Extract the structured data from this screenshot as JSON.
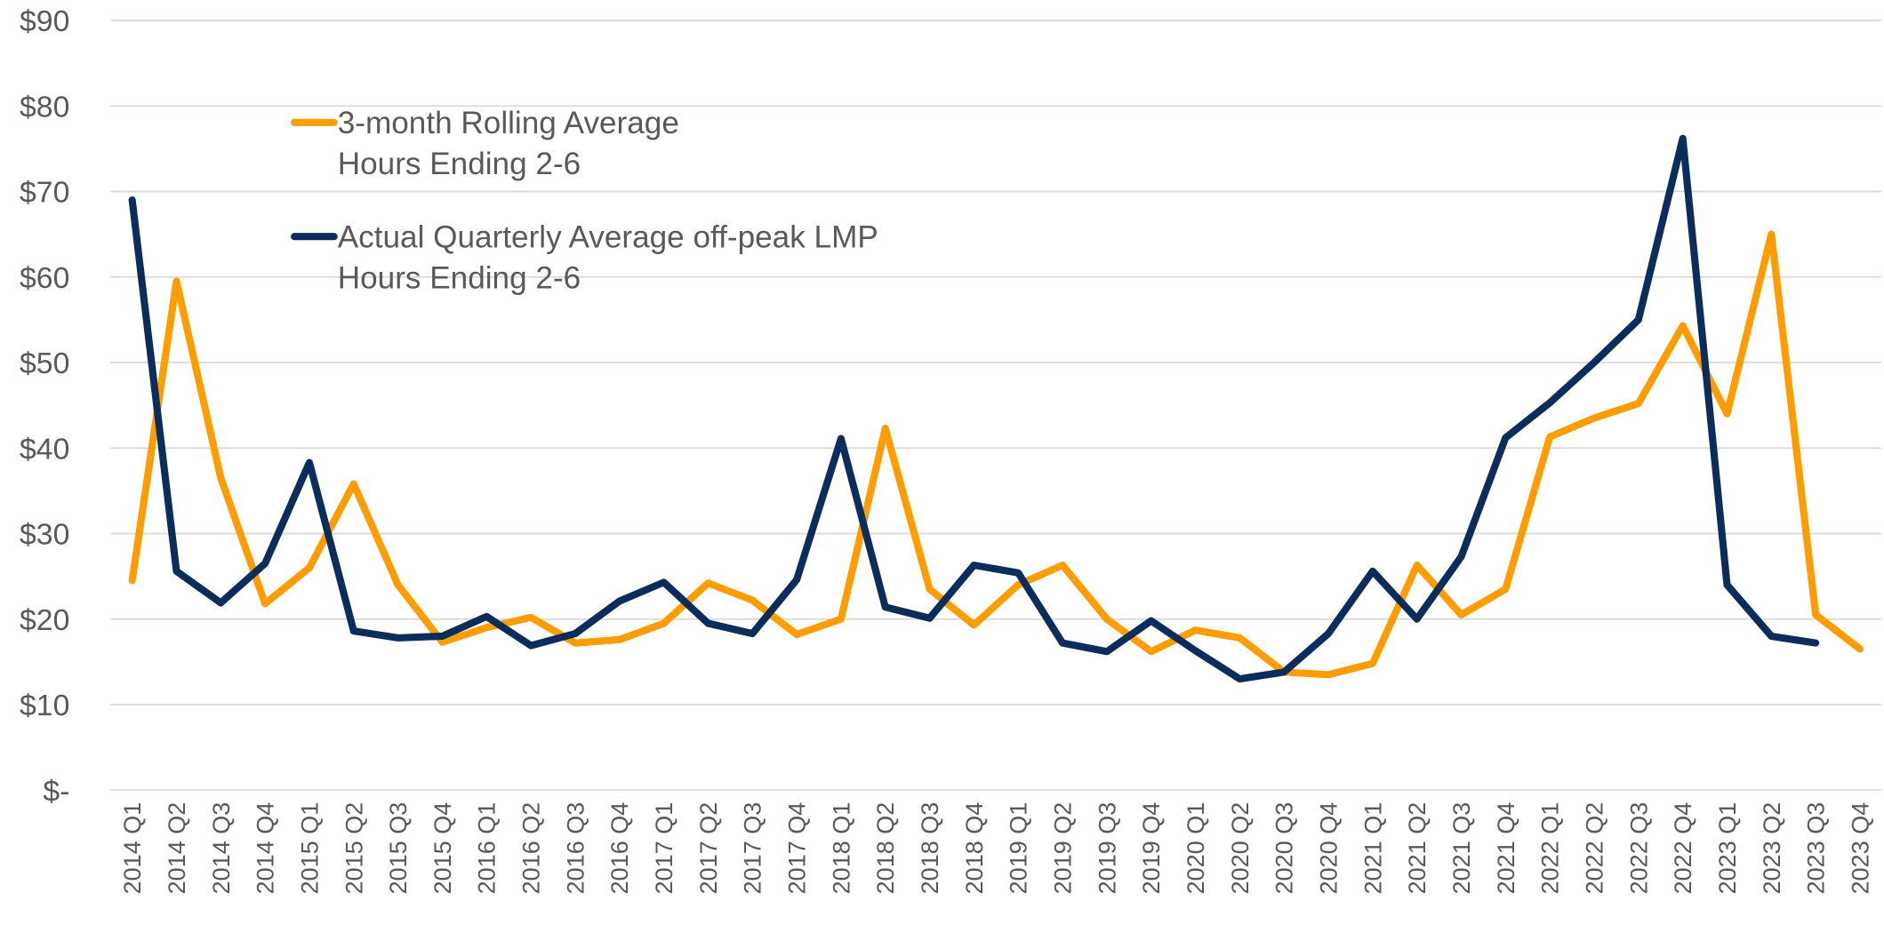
{
  "chart_data": {
    "type": "line",
    "categories": [
      "2014 Q1",
      "2014 Q2",
      "2014 Q3",
      "2014 Q4",
      "2015 Q1",
      "2015 Q2",
      "2015 Q3",
      "2015 Q4",
      "2016 Q1",
      "2016 Q2",
      "2016 Q3",
      "2016 Q4",
      "2017 Q1",
      "2017 Q2",
      "2017 Q3",
      "2017 Q4",
      "2018 Q1",
      "2018 Q2",
      "2018 Q3",
      "2018 Q4",
      "2019 Q1",
      "2019 Q2",
      "2019 Q3",
      "2019 Q4",
      "2020 Q1",
      "2020 Q2",
      "2020 Q3",
      "2020 Q4",
      "2021 Q1",
      "2021 Q2",
      "2021 Q3",
      "2021 Q4",
      "2022 Q1",
      "2022 Q2",
      "2022 Q3",
      "2022 Q4",
      "2023 Q1",
      "2023 Q2",
      "2023 Q3",
      "2023 Q4"
    ],
    "series": [
      {
        "name": "3-month Rolling Average\nHours Ending 2-6",
        "color": "#ff9c00",
        "values": [
          24.5,
          59.5,
          36.5,
          21.8,
          26,
          35.8,
          24,
          17.3,
          19,
          20.2,
          17.2,
          17.6,
          19.5,
          24.2,
          22.2,
          18.2,
          20,
          42.3,
          23.5,
          19.3,
          24,
          26.3,
          20,
          16.2,
          18.7,
          17.8,
          13.8,
          13.5,
          14.8,
          26.3,
          20.5,
          23.5,
          41.3,
          43.5,
          45.2,
          54.3,
          44,
          65,
          20.5,
          16.5
        ]
      },
      {
        "name": "Actual Quarterly Average off-peak LMP\nHours Ending 2-6",
        "color": "#0b2d5b",
        "values": [
          69,
          25.6,
          21.9,
          26.5,
          38.3,
          18.6,
          17.8,
          18,
          20.3,
          16.9,
          18.3,
          22.1,
          24.3,
          19.5,
          18.3,
          24.6,
          41.1,
          21.4,
          20.1,
          26.3,
          25.4,
          17.2,
          16.2,
          19.8,
          16.3,
          13,
          13.8,
          18.3,
          25.6,
          20,
          27.3,
          41.2,
          45.3,
          50,
          55,
          76.2,
          24,
          18,
          17.2,
          null
        ]
      }
    ],
    "ylim": [
      0,
      90
    ],
    "yticks": [
      {
        "value": 0,
        "label": "$-"
      },
      {
        "value": 10,
        "label": "$10"
      },
      {
        "value": 20,
        "label": "$20"
      },
      {
        "value": 30,
        "label": "$30"
      },
      {
        "value": 40,
        "label": "$40"
      },
      {
        "value": 50,
        "label": "$50"
      },
      {
        "value": 60,
        "label": "$60"
      },
      {
        "value": 70,
        "label": "$70"
      },
      {
        "value": 80,
        "label": "$80"
      },
      {
        "value": 90,
        "label": "$90"
      }
    ],
    "grid": true
  }
}
